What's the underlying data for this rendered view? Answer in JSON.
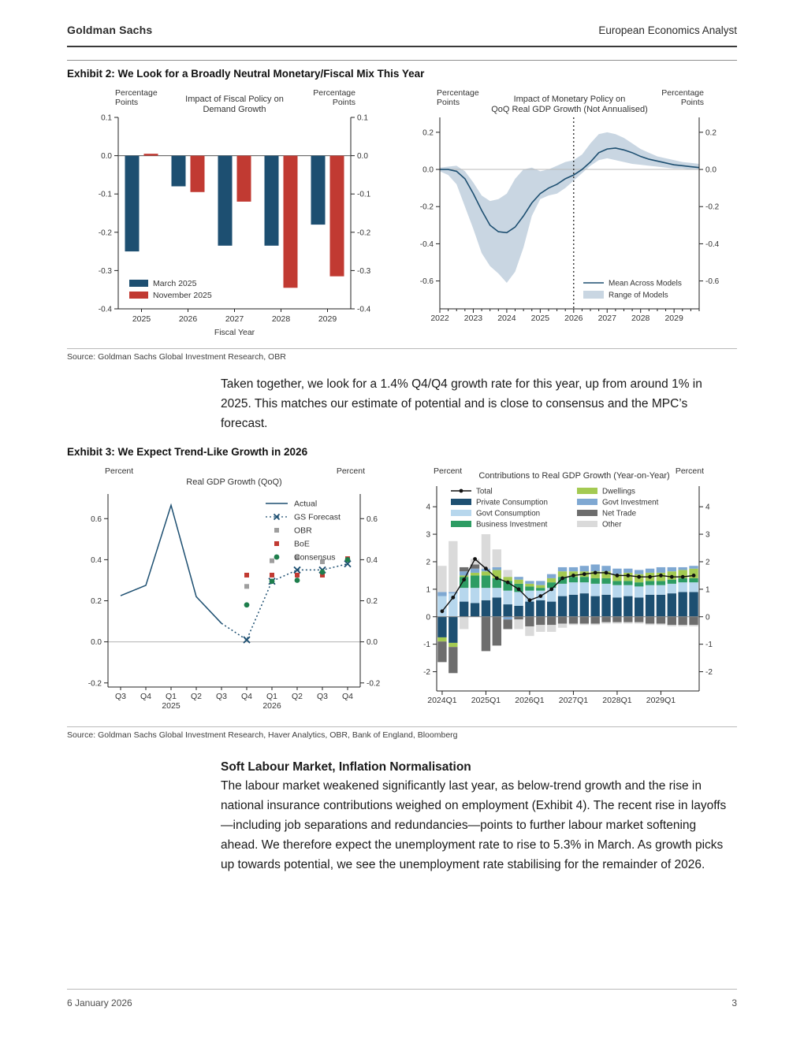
{
  "header": {
    "brand": "Goldman Sachs",
    "publication": "European Economics Analyst"
  },
  "exhibit2": {
    "title": "Exhibit 2: We Look for a Broadly Neutral Monetary/Fiscal Mix This Year",
    "source": "Source: Goldman Sachs Global Investment Research, OBR"
  },
  "paragraph1": "Taken together, we look for a 1.4% Q4/Q4 growth rate for this year, up from around 1% in 2025. This matches our estimate of potential and is close to consensus and the MPC’s forecast.",
  "exhibit3": {
    "title": "Exhibit 3: We Expect Trend-Like Growth in 2026",
    "source": "Source: Goldman Sachs Global Investment Research, Haver Analytics, OBR, Bank of England, Bloomberg"
  },
  "section": {
    "heading": "Soft Labour Market, Inflation Normalisation",
    "body": "The labour market weakened significantly last year, as below-trend growth and the rise in national insurance contributions weighed on employment (Exhibit 4). The recent rise in layoffs—including job separations and redundancies—points to further labour market softening ahead. We therefore expect the unemployment rate to rise to 5.3% in March. As growth picks up towards potential, we see the unemployment rate stabilising for the remainder of 2026."
  },
  "footer": {
    "date": "6 January 2026",
    "page_number": "3"
  },
  "colors": {
    "navy": "#1d4f71",
    "red": "#c13a32",
    "band": "#c9d6e2",
    "ltblue": "#b7d7ed",
    "green": "#2d9c63",
    "lime": "#a4ca52",
    "steel": "#7fa8d2",
    "dkgrey": "#6d6d6d",
    "ltgrey": "#dadada",
    "black": "#111111",
    "obr_grey": "#9e9e9e",
    "boe_red": "#c13a32",
    "cons_green": "#1e7e4c"
  },
  "chart_data": [
    {
      "id": "fiscal_impact",
      "type": "bar",
      "title_lines": [
        "Impact of Fiscal Policy on",
        "Demand Growth"
      ],
      "axis_label": "Percentage Points",
      "xlabel": "Fiscal Year",
      "categories": [
        "2025",
        "2026",
        "2027",
        "2028",
        "2029"
      ],
      "series": [
        {
          "name": "March 2025",
          "color": "#1d4f71",
          "values": [
            -0.25,
            -0.08,
            -0.235,
            -0.235,
            -0.18
          ]
        },
        {
          "name": "November 2025",
          "color": "#c13a32",
          "values": [
            0.005,
            -0.095,
            -0.12,
            -0.345,
            -0.315
          ]
        }
      ],
      "ylim": [
        -0.4,
        0.1
      ],
      "yticks": [
        0.1,
        0.0,
        -0.1,
        -0.2,
        -0.3,
        -0.4
      ]
    },
    {
      "id": "monetary_impact",
      "type": "area",
      "title_lines": [
        "Impact of Monetary Policy on",
        "QoQ Real GDP Growth (Not Annualised)"
      ],
      "axis_label": "Percentage Points",
      "years": [
        "2022",
        "2023",
        "2024",
        "2025",
        "2026",
        "2027",
        "2028",
        "2029"
      ],
      "mean": [
        0.0,
        0.0,
        -0.01,
        -0.05,
        -0.13,
        -0.22,
        -0.3,
        -0.335,
        -0.34,
        -0.31,
        -0.25,
        -0.18,
        -0.13,
        -0.1,
        -0.08,
        -0.05,
        -0.03,
        0.0,
        0.04,
        0.09,
        0.11,
        0.115,
        0.105,
        0.09,
        0.07,
        0.055,
        0.045,
        0.035,
        0.025,
        0.02,
        0.015,
        0.01
      ],
      "band_upper": [
        0.01,
        0.015,
        0.02,
        -0.01,
        -0.07,
        -0.14,
        -0.17,
        -0.16,
        -0.13,
        -0.05,
        0.0,
        0.01,
        -0.01,
        0.0,
        0.02,
        0.04,
        0.05,
        0.08,
        0.14,
        0.19,
        0.2,
        0.19,
        0.17,
        0.14,
        0.11,
        0.09,
        0.07,
        0.06,
        0.05,
        0.04,
        0.035,
        0.03
      ],
      "band_lower": [
        -0.01,
        -0.03,
        -0.08,
        -0.2,
        -0.32,
        -0.45,
        -0.52,
        -0.56,
        -0.61,
        -0.55,
        -0.42,
        -0.25,
        -0.16,
        -0.14,
        -0.13,
        -0.1,
        -0.06,
        -0.02,
        0.02,
        0.05,
        0.06,
        0.05,
        0.04,
        0.03,
        0.025,
        0.02,
        0.015,
        0.01,
        0.005,
        0.005,
        0.0,
        0.0
      ],
      "forecast_vline_index": 16,
      "legend": [
        "Mean Across Models",
        "Range of Models"
      ],
      "ylim": [
        -0.6,
        0.2
      ],
      "yticks": [
        0.2,
        0.0,
        -0.2,
        -0.4,
        -0.6
      ]
    },
    {
      "id": "real_gdp_qoq",
      "type": "line",
      "title_lines": [
        "Real GDP Growth (QoQ)"
      ],
      "axis_label": "Percent",
      "categories": [
        "Q3",
        "Q4",
        "Q1",
        "Q2",
        "Q3",
        "Q4",
        "Q1",
        "Q2",
        "Q3",
        "Q4"
      ],
      "year_labels": [
        {
          "index": 2,
          "label": "2025"
        },
        {
          "index": 6,
          "label": "2026"
        }
      ],
      "actual": [
        0.225,
        0.275,
        0.665,
        0.22,
        0.09,
        null,
        null,
        null,
        null,
        null
      ],
      "gs_forecast": [
        null,
        null,
        null,
        null,
        0.09,
        0.01,
        0.295,
        0.35,
        0.35,
        0.38
      ],
      "obr": [
        null,
        null,
        null,
        null,
        null,
        0.27,
        0.395,
        0.41,
        0.39,
        null
      ],
      "boe": [
        null,
        null,
        null,
        null,
        null,
        0.325,
        0.325,
        0.325,
        0.325,
        0.405
      ],
      "consensus": [
        null,
        null,
        null,
        null,
        null,
        0.18,
        0.295,
        0.3,
        0.34,
        0.4
      ],
      "legend": [
        "Actual",
        "GS Forecast",
        "OBR",
        "BoE",
        "Consensus"
      ],
      "ylim": [
        -0.2,
        0.7
      ],
      "yticks": [
        0.6,
        0.4,
        0.2,
        0.0,
        -0.2
      ]
    },
    {
      "id": "gdp_contributions",
      "type": "stacked-bar",
      "title_lines": [
        "Contributions to Real GDP Growth (Year-on-Year)"
      ],
      "axis_label": "Percent",
      "categories": [
        "2024Q1",
        "2024Q2",
        "2024Q3",
        "2024Q4",
        "2025Q1",
        "2025Q2",
        "2025Q3",
        "2025Q4",
        "2026Q1",
        "2026Q2",
        "2026Q3",
        "2026Q4",
        "2027Q1",
        "2027Q2",
        "2027Q3",
        "2027Q4",
        "2028Q1",
        "2028Q2",
        "2028Q3",
        "2028Q4",
        "2029Q1",
        "2029Q2",
        "2029Q3",
        "2029Q4"
      ],
      "xtick_indices": [
        0,
        4,
        8,
        12,
        16,
        20
      ],
      "total": {
        "name": "Total",
        "values": [
          0.2,
          0.7,
          1.35,
          2.1,
          1.75,
          1.4,
          1.25,
          1.0,
          0.6,
          0.75,
          1.0,
          1.4,
          1.5,
          1.55,
          1.6,
          1.6,
          1.5,
          1.5,
          1.45,
          1.45,
          1.5,
          1.45,
          1.45,
          1.5
        ]
      },
      "series": [
        {
          "name": "Private Consumption",
          "color": "#1d4f71",
          "values": [
            -0.75,
            -0.95,
            0.55,
            0.5,
            0.6,
            0.7,
            0.45,
            0.4,
            0.55,
            0.6,
            0.55,
            0.75,
            0.8,
            0.85,
            0.75,
            0.8,
            0.7,
            0.75,
            0.7,
            0.8,
            0.8,
            0.85,
            0.9,
            0.9
          ]
        },
        {
          "name": "Govt Consumption",
          "color": "#b7d7ed",
          "values": [
            0.75,
            0.85,
            0.5,
            0.55,
            0.45,
            0.35,
            0.5,
            0.5,
            0.4,
            0.35,
            0.5,
            0.45,
            0.45,
            0.4,
            0.45,
            0.4,
            0.45,
            0.4,
            0.4,
            0.35,
            0.35,
            0.35,
            0.35,
            0.35
          ]
        },
        {
          "name": "Business Investment",
          "color": "#2d9c63",
          "values": [
            0,
            0,
            0.4,
            0.45,
            0.45,
            0.35,
            0.35,
            0.3,
            0.15,
            0.1,
            0.2,
            0.25,
            0.2,
            0.2,
            0.2,
            0.2,
            0.15,
            0.15,
            0.15,
            0.15,
            0.15,
            0.15,
            0.15,
            0.15
          ]
        },
        {
          "name": "Dwellings",
          "color": "#a4ca52",
          "values": [
            -0.15,
            -0.15,
            0.05,
            0.1,
            0.15,
            0.3,
            0.15,
            0.15,
            0.1,
            0.1,
            0.15,
            0.2,
            0.2,
            0.2,
            0.25,
            0.25,
            0.25,
            0.3,
            0.3,
            0.3,
            0.3,
            0.3,
            0.3,
            0.35
          ]
        },
        {
          "name": "Govt Investment",
          "color": "#7fa8d2",
          "values": [
            0.15,
            0.05,
            0.15,
            0.15,
            0.1,
            0.1,
            -0.1,
            0.1,
            0.1,
            0.15,
            0.15,
            0.15,
            0.15,
            0.2,
            0.25,
            0.2,
            0.2,
            0.15,
            0.15,
            0.15,
            0.2,
            0.15,
            0.1,
            0.1
          ]
        },
        {
          "name": "Net Trade",
          "color": "#6d6d6d",
          "values": [
            -0.75,
            -0.95,
            0.15,
            0.15,
            -1.25,
            -1.05,
            -0.35,
            -0.1,
            -0.35,
            -0.3,
            -0.3,
            -0.25,
            -0.25,
            -0.25,
            -0.25,
            -0.2,
            -0.2,
            -0.2,
            -0.2,
            -0.25,
            -0.25,
            -0.3,
            -0.3,
            -0.3
          ]
        },
        {
          "name": "Other",
          "color": "#dadada",
          "values": [
            0.95,
            1.85,
            -0.45,
            0.2,
            1.25,
            0.65,
            0.25,
            -0.35,
            -0.35,
            -0.25,
            -0.25,
            -0.15,
            -0.05,
            -0.05,
            -0.05,
            -0.05,
            -0.05,
            -0.05,
            -0.05,
            -0.05,
            -0.05,
            -0.05,
            -0.05,
            -0.05
          ]
        }
      ],
      "ylim": [
        -2,
        4
      ],
      "yticks": [
        4,
        3,
        2,
        1,
        0,
        -1,
        -2
      ]
    }
  ]
}
